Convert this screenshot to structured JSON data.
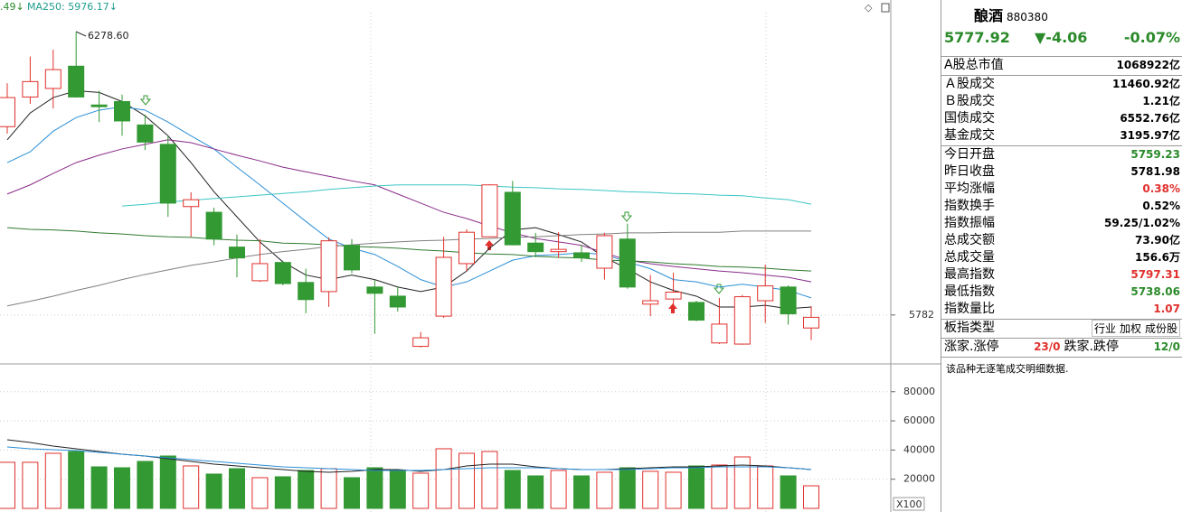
{
  "chart_data": [
    {
      "type": "candlestick",
      "legend": [
        ".49↓",
        "MA250: 5976.17↓"
      ],
      "high_label": "6278.60",
      "open": [
        6112,
        6164,
        6179,
        6218,
        6150,
        6156,
        6115,
        6081,
        5972,
        5962,
        5901,
        5842,
        5874,
        5839,
        5823,
        5904,
        5831,
        5815,
        5727,
        5780,
        5872,
        5919,
        5997,
        5908,
        5893,
        5891,
        5864,
        5915,
        5801,
        5810,
        5804,
        5733,
        5731,
        5807,
        5831,
        5759.23
      ],
      "high": [
        6188,
        6235,
        6247,
        6278.6,
        6175,
        6168,
        6133,
        6096,
        5997,
        5970,
        5923,
        5915,
        5877,
        5863,
        5918,
        5915,
        5844,
        5831,
        5752,
        5919,
        5932,
        6011,
        6017,
        5926,
        5927,
        5905,
        5926,
        5942,
        5852,
        5856,
        5807,
        5812,
        5817,
        5870,
        5834,
        5797.31
      ],
      "low": [
        6100,
        6152,
        6144,
        6163,
        6120,
        6096,
        6071,
        5954,
        5919,
        5904,
        5848,
        5840,
        5834,
        5785,
        5796,
        5855,
        5749,
        5788,
        5725,
        5777,
        5859,
        5918,
        5904,
        5883,
        5882,
        5875,
        5844,
        5828,
        5780,
        5796,
        5771,
        5731,
        5730,
        5768,
        5765,
        5738.06
      ],
      "close": [
        6163,
        6191,
        6212,
        6164,
        6147,
        6122,
        6085,
        5978,
        5984,
        5915,
        5882,
        5872,
        5837,
        5809,
        5912,
        5861,
        5820,
        5796,
        5742,
        5883,
        5927,
        6010,
        5905,
        5893,
        5897,
        5882,
        5921,
        5831,
        5807,
        5822,
        5773,
        5766,
        5814,
        5833,
        5784,
        5777.92
      ],
      "up_color": "#e0302c",
      "down_color": "#339933",
      "ylim": [
        5701,
        6334
      ],
      "yticks": [
        5782
      ],
      "grid": true,
      "ma": [
        {
          "color": "#222222",
          "values": [
            6089,
            6136,
            6163,
            6175,
            6172,
            6156,
            6131,
            6096,
            6049,
            5998,
            5954,
            5910,
            5875,
            5852,
            5844,
            5852,
            5844,
            5831,
            5823,
            5831,
            5859,
            5899,
            5931,
            5935,
            5923,
            5910,
            5883,
            5863,
            5840,
            5825,
            5815,
            5796,
            5796,
            5799,
            5793,
            5796
          ]
        },
        {
          "color": "#2a8fd6",
          "values": [
            6049,
            6068,
            6104,
            6128,
            6141,
            6147,
            6141,
            6120,
            6096,
            6073,
            6041,
            6010,
            5978,
            5946,
            5915,
            5899,
            5888,
            5867,
            5844,
            5831,
            5840,
            5859,
            5878,
            5886,
            5888,
            5891,
            5888,
            5875,
            5863,
            5844,
            5840,
            5831,
            5836,
            5831,
            5825,
            5812
          ]
        },
        {
          "color": "#8a2b8a",
          "values": [
            5994,
            6010,
            6030,
            6049,
            6062,
            6073,
            6081,
            6089,
            6084,
            6073,
            6062,
            6052,
            6041,
            6033,
            6025,
            6017,
            6010,
            5994,
            5978,
            5962,
            5951,
            5938,
            5926,
            5916,
            5910,
            5904,
            5891,
            5878,
            5872,
            5867,
            5863,
            5859,
            5856,
            5852,
            5848,
            5840
          ]
        },
        {
          "color": "#2f7a2f",
          "values": [
            5935,
            5932,
            5931,
            5929,
            5926,
            5924,
            5921,
            5919,
            5918,
            5915,
            5913,
            5912,
            5908,
            5907,
            5905,
            5902,
            5901,
            5899,
            5896,
            5894,
            5891,
            5889,
            5888,
            5885,
            5883,
            5882,
            5878,
            5877,
            5875,
            5872,
            5870,
            5867,
            5866,
            5864,
            5861,
            5859
          ]
        },
        {
          "color": "#808080",
          "values": [
            5798,
            5806,
            5815,
            5825,
            5834,
            5844,
            5853,
            5861,
            5869,
            5875,
            5882,
            5888,
            5893,
            5897,
            5902,
            5905,
            5908,
            5910,
            5912,
            5913,
            5915,
            5916,
            5918,
            5919,
            5921,
            5923,
            5924,
            5926,
            5926,
            5927,
            5927,
            5927,
            5929,
            5929,
            5929,
            5929
          ]
        },
        {
          "color": "#3cc6c6",
          "values": [
            null,
            null,
            null,
            null,
            null,
            5973,
            5976,
            5980,
            5983,
            5986,
            5989,
            5992,
            5995,
            5998,
            6002,
            6005,
            6008,
            6010,
            6010,
            6010,
            6010,
            6008,
            6006,
            6005,
            6003,
            6002,
            6000,
            5998,
            5997,
            5995,
            5994,
            5992,
            5991,
            5987,
            5984,
            5976.17
          ]
        }
      ]
    },
    {
      "type": "bar",
      "unit_label": "X100",
      "values": [
        31600,
        31600,
        37770,
        39000,
        28480,
        27860,
        32200,
        35910,
        29100,
        23530,
        27240,
        21050,
        21670,
        26000,
        27240,
        21050,
        27860,
        25390,
        24150,
        40870,
        37770,
        39000,
        26000,
        22290,
        26000,
        22290,
        24770,
        27860,
        25390,
        24770,
        29100,
        29720,
        35290,
        29100,
        22290,
        15480
      ],
      "ylim": [
        0,
        97800
      ],
      "yticks": [
        80000,
        60000,
        40000,
        20000
      ],
      "grid": true,
      "ma": [
        {
          "color": "#222222",
          "values": [
            47060,
            45200,
            42720,
            40870,
            39010,
            37150,
            35910,
            34060,
            32200,
            30340,
            29100,
            27860,
            26630,
            25390,
            24770,
            25390,
            26630,
            26630,
            25390,
            26630,
            29100,
            30340,
            30340,
            28480,
            27240,
            26630,
            26630,
            27240,
            27860,
            28480,
            28480,
            29100,
            29720,
            29100,
            27860,
            26630
          ]
        },
        {
          "color": "#2a8fd6",
          "values": [
            42110,
            40870,
            40250,
            39630,
            38390,
            37150,
            35910,
            34680,
            33440,
            32200,
            30960,
            29720,
            28480,
            27860,
            27240,
            26630,
            26010,
            26010,
            26010,
            26630,
            27240,
            27860,
            27860,
            27860,
            27240,
            26630,
            26630,
            26630,
            27240,
            27860,
            27860,
            28480,
            28480,
            28480,
            27860,
            26630
          ]
        }
      ]
    }
  ],
  "panel": {
    "title": "酿酒",
    "code": "880380",
    "price": "5777.92",
    "change": "▼-4.06",
    "pct": "-0.07%",
    "rows": [
      {
        "label": "A股总市值",
        "value": "1068922亿",
        "color": "#000000"
      },
      {
        "label": "Ａ股成交",
        "value": "11460.92亿",
        "color": "#000000"
      },
      {
        "label": "Ｂ股成交",
        "value": "1.21亿",
        "color": "#000000"
      },
      {
        "label": "国债成交",
        "value": "6552.76亿",
        "color": "#000000"
      },
      {
        "label": "基金成交",
        "value": "3195.97亿",
        "color": "#000000"
      },
      {
        "label": "今日开盘",
        "value": "5759.23",
        "color": "#2a8a2a"
      },
      {
        "label": "昨日收盘",
        "value": "5781.98",
        "color": "#000000"
      },
      {
        "label": "平均涨幅",
        "value": "0.38%",
        "color": "#e0302c"
      },
      {
        "label": "指数换手",
        "value": "0.52%",
        "color": "#000000"
      },
      {
        "label": "指数振幅",
        "value": "59.25/1.02%",
        "color": "#000000"
      },
      {
        "label": "总成交额",
        "value": "73.90亿",
        "color": "#000000"
      },
      {
        "label": "总成交量",
        "value": "156.6万",
        "color": "#000000"
      },
      {
        "label": "最高指数",
        "value": "5797.31",
        "color": "#e0302c"
      },
      {
        "label": "最低指数",
        "value": "5738.06",
        "color": "#2a8a2a"
      },
      {
        "label": "指数量比",
        "value": "1.07",
        "color": "#e0302c"
      }
    ],
    "type_label": "板指类型",
    "type_options": [
      "行业",
      "加权",
      "成份股"
    ],
    "up_label": "涨家.涨停",
    "up_value": "23/0",
    "down_label": "跌家.跌停",
    "down_value": "12/0",
    "note": "该品种无逐笔成交明细数据."
  }
}
